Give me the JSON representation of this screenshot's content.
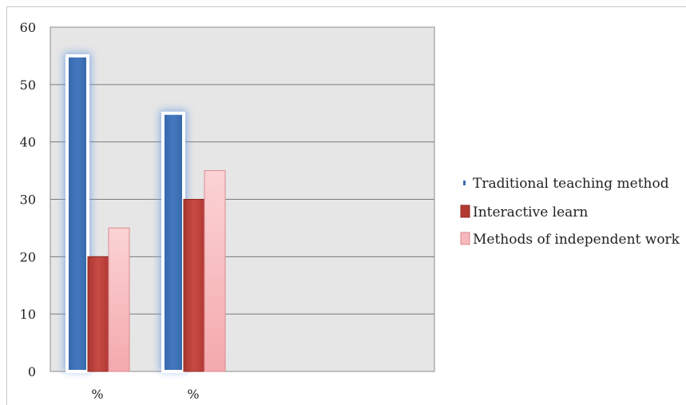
{
  "chart_data": {
    "type": "bar",
    "categories": [
      "%",
      "%"
    ],
    "series": [
      {
        "name": "Traditional teaching method",
        "values": [
          55,
          45
        ],
        "color": "#3d6fb0"
      },
      {
        "name": "Interactive learn",
        "values": [
          20,
          30
        ],
        "color": "#c0463f"
      },
      {
        "name": "Methods of independent work",
        "values": [
          25,
          35
        ],
        "color": "#f7c0c3"
      }
    ],
    "ylim": [
      0,
      60
    ],
    "yticks": [
      "0",
      "10",
      "20",
      "30",
      "40",
      "50",
      "60"
    ],
    "grid": true,
    "legend": "right",
    "plot_background": "#e6e6e6"
  }
}
